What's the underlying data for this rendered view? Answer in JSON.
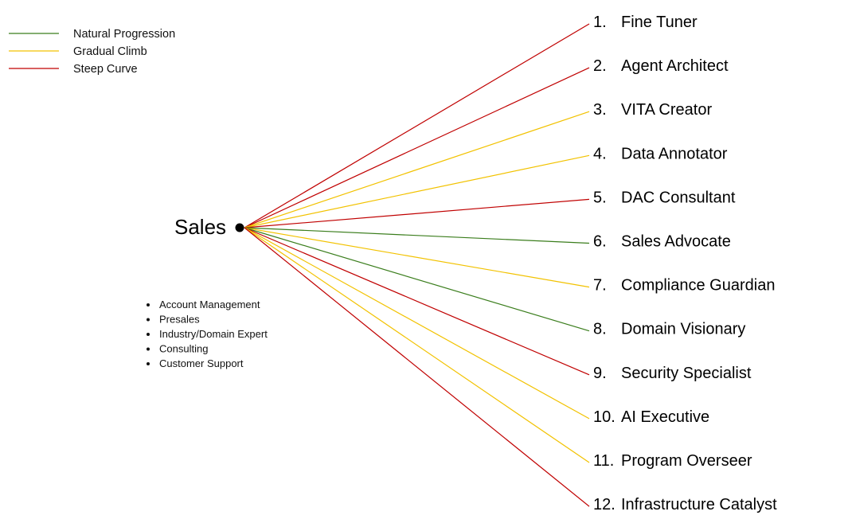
{
  "legend": [
    {
      "label": "Natural Progression",
      "color": "#3a7d1c"
    },
    {
      "label": "Gradual Climb",
      "color": "#f2c200"
    },
    {
      "label": "Steep Curve",
      "color": "#c00000"
    }
  ],
  "source": {
    "label": "Sales",
    "sub_items": [
      "Account Management",
      "Presales",
      "Industry/Domain Expert",
      "Consulting",
      "Customer Support"
    ]
  },
  "roles": [
    {
      "number": "1.",
      "name": "Fine Tuner",
      "path": "Steep Curve"
    },
    {
      "number": "2.",
      "name": "Agent Architect",
      "path": "Steep Curve"
    },
    {
      "number": "3.",
      "name": "VITA Creator",
      "path": "Gradual Climb"
    },
    {
      "number": "4.",
      "name": "Data Annotator",
      "path": "Gradual Climb"
    },
    {
      "number": "5.",
      "name": "DAC Consultant",
      "path": "Steep Curve"
    },
    {
      "number": "6.",
      "name": "Sales Advocate",
      "path": "Natural Progression"
    },
    {
      "number": "7.",
      "name": "Compliance Guardian",
      "path": "Gradual Climb"
    },
    {
      "number": "8.",
      "name": "Domain Visionary",
      "path": "Natural Progression"
    },
    {
      "number": "9.",
      "name": "Security Specialist",
      "path": "Steep Curve"
    },
    {
      "number": "10.",
      "name": "AI Executive",
      "path": "Gradual Climb"
    },
    {
      "number": "11.",
      "name": "Program Overseer",
      "path": "Gradual Climb"
    },
    {
      "number": "12.",
      "name": "Infrastructure Catalyst",
      "path": "Steep Curve"
    }
  ]
}
